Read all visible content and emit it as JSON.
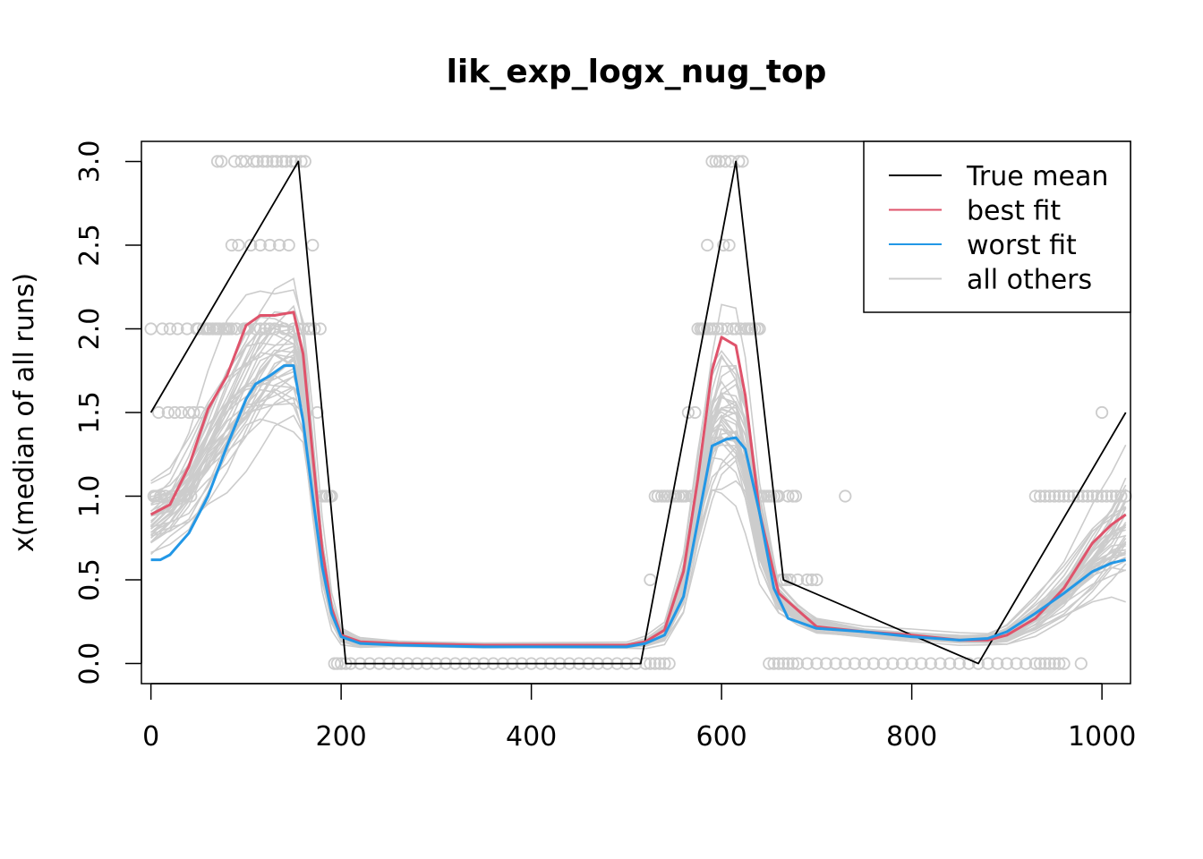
{
  "chart_data": {
    "type": "line",
    "title": "lik_exp_logx_nug_top",
    "xlabel": "",
    "ylabel": "x(median of all runs)",
    "xlim": [
      -10,
      1030
    ],
    "ylim": [
      -0.12,
      3.12
    ],
    "x_ticks": [
      0,
      200,
      400,
      600,
      800,
      1000
    ],
    "y_ticks": [
      0.0,
      0.5,
      1.0,
      1.5,
      2.0,
      2.5,
      3.0
    ],
    "x_tick_labels": [
      "0",
      "200",
      "400",
      "600",
      "800",
      "1000"
    ],
    "y_tick_labels": [
      "0.0",
      "0.5",
      "1.0",
      "1.5",
      "2.0",
      "2.5",
      "3.0"
    ],
    "legend": {
      "position": "top-right",
      "entries": [
        {
          "label": "True mean",
          "color": "#000000"
        },
        {
          "label": "best fit",
          "color": "#DF536B"
        },
        {
          "label": "worst fit",
          "color": "#2297E6"
        },
        {
          "label": "all others",
          "color": "#CCCCCC"
        }
      ]
    },
    "series": [
      {
        "name": "True mean",
        "color": "#000000",
        "x": [
          0,
          155,
          205,
          515,
          615,
          665,
          870,
          1025
        ],
        "y": [
          1.5,
          3.0,
          0.0,
          0.0,
          3.0,
          0.5,
          0.0,
          1.5
        ]
      },
      {
        "name": "best fit",
        "color": "#DF536B",
        "x": [
          0,
          20,
          40,
          60,
          80,
          100,
          115,
          130,
          150,
          160,
          170,
          180,
          190,
          200,
          220,
          260,
          350,
          450,
          500,
          520,
          540,
          560,
          575,
          590,
          600,
          615,
          625,
          640,
          660,
          680,
          700,
          750,
          800,
          850,
          880,
          900,
          930,
          960,
          990,
          1010,
          1025
        ],
        "y": [
          0.89,
          0.95,
          1.18,
          1.52,
          1.72,
          2.02,
          2.08,
          2.08,
          2.1,
          1.85,
          1.25,
          0.68,
          0.33,
          0.17,
          0.13,
          0.12,
          0.11,
          0.11,
          0.11,
          0.13,
          0.2,
          0.55,
          1.1,
          1.75,
          1.95,
          1.9,
          1.6,
          0.9,
          0.42,
          0.32,
          0.22,
          0.19,
          0.17,
          0.14,
          0.14,
          0.17,
          0.27,
          0.45,
          0.72,
          0.83,
          0.89
        ]
      },
      {
        "name": "worst fit",
        "color": "#2297E6",
        "x": [
          0,
          10,
          20,
          40,
          60,
          80,
          100,
          110,
          125,
          140,
          150,
          160,
          170,
          180,
          190,
          200,
          220,
          260,
          350,
          450,
          500,
          520,
          540,
          560,
          575,
          590,
          605,
          615,
          625,
          640,
          655,
          670,
          700,
          750,
          800,
          850,
          880,
          900,
          930,
          960,
          990,
          1010,
          1025
        ],
        "y": [
          0.62,
          0.62,
          0.65,
          0.78,
          1.0,
          1.3,
          1.58,
          1.67,
          1.72,
          1.78,
          1.78,
          1.45,
          1.0,
          0.58,
          0.3,
          0.16,
          0.12,
          0.11,
          0.1,
          0.1,
          0.1,
          0.12,
          0.17,
          0.4,
          0.85,
          1.3,
          1.34,
          1.35,
          1.28,
          0.9,
          0.45,
          0.27,
          0.21,
          0.19,
          0.16,
          0.14,
          0.15,
          0.19,
          0.3,
          0.42,
          0.55,
          0.6,
          0.62
        ]
      }
    ],
    "other_runs": {
      "color": "#CCCCCC",
      "count": 40,
      "x": [
        0,
        20,
        40,
        60,
        80,
        100,
        115,
        130,
        150,
        160,
        170,
        180,
        190,
        200,
        220,
        260,
        350,
        450,
        500,
        520,
        540,
        560,
        575,
        590,
        600,
        615,
        625,
        640,
        660,
        680,
        700,
        750,
        800,
        850,
        880,
        900,
        930,
        960,
        990,
        1010,
        1025
      ],
      "y_center": [
        0.9,
        0.97,
        1.12,
        1.35,
        1.55,
        1.72,
        1.82,
        1.88,
        1.9,
        1.72,
        1.2,
        0.66,
        0.32,
        0.17,
        0.13,
        0.12,
        0.11,
        0.11,
        0.11,
        0.13,
        0.19,
        0.5,
        1.0,
        1.45,
        1.58,
        1.55,
        1.35,
        0.82,
        0.4,
        0.3,
        0.23,
        0.19,
        0.17,
        0.15,
        0.15,
        0.18,
        0.3,
        0.45,
        0.66,
        0.78,
        0.88
      ],
      "spread": [
        0.15,
        0.15,
        0.2,
        0.25,
        0.28,
        0.28,
        0.28,
        0.28,
        0.3,
        0.25,
        0.2,
        0.12,
        0.06,
        0.03,
        0.02,
        0.01,
        0.01,
        0.01,
        0.01,
        0.02,
        0.04,
        0.12,
        0.2,
        0.3,
        0.35,
        0.32,
        0.28,
        0.18,
        0.06,
        0.04,
        0.03,
        0.02,
        0.02,
        0.02,
        0.02,
        0.04,
        0.08,
        0.12,
        0.18,
        0.2,
        0.25
      ]
    },
    "observations": {
      "color": "#CCCCCC",
      "note_values": [
        0,
        0.5,
        1,
        1.5,
        2,
        2.5,
        3
      ],
      "points": [
        [
          0,
          2
        ],
        [
          3,
          1
        ],
        [
          5,
          1
        ],
        [
          8,
          1.5
        ],
        [
          10,
          1
        ],
        [
          12,
          2
        ],
        [
          15,
          1
        ],
        [
          18,
          1.5
        ],
        [
          20,
          2
        ],
        [
          22,
          1
        ],
        [
          25,
          1.5
        ],
        [
          28,
          2
        ],
        [
          30,
          1
        ],
        [
          32,
          1.5
        ],
        [
          35,
          1
        ],
        [
          38,
          2
        ],
        [
          40,
          1.5
        ],
        [
          42,
          1
        ],
        [
          45,
          1.5
        ],
        [
          48,
          2
        ],
        [
          50,
          2
        ],
        [
          52,
          1.5
        ],
        [
          55,
          2
        ],
        [
          58,
          2
        ],
        [
          60,
          2
        ],
        [
          62,
          2
        ],
        [
          65,
          2
        ],
        [
          68,
          2
        ],
        [
          70,
          2
        ],
        [
          70,
          3
        ],
        [
          72,
          2
        ],
        [
          74,
          3
        ],
        [
          76,
          2
        ],
        [
          78,
          2
        ],
        [
          80,
          2
        ],
        [
          82,
          2
        ],
        [
          85,
          2
        ],
        [
          85,
          2.5
        ],
        [
          88,
          3
        ],
        [
          90,
          2
        ],
        [
          92,
          2.5
        ],
        [
          95,
          3
        ],
        [
          98,
          2
        ],
        [
          100,
          2
        ],
        [
          100,
          3
        ],
        [
          102,
          2
        ],
        [
          105,
          2.5
        ],
        [
          108,
          3
        ],
        [
          110,
          2
        ],
        [
          112,
          3
        ],
        [
          115,
          2
        ],
        [
          115,
          2.5
        ],
        [
          118,
          3
        ],
        [
          120,
          2
        ],
        [
          122,
          3
        ],
        [
          125,
          2
        ],
        [
          125,
          2.5
        ],
        [
          128,
          3
        ],
        [
          130,
          2
        ],
        [
          132,
          3
        ],
        [
          135,
          2.5
        ],
        [
          138,
          3
        ],
        [
          140,
          2
        ],
        [
          142,
          3
        ],
        [
          145,
          2.5
        ],
        [
          148,
          3
        ],
        [
          150,
          2
        ],
        [
          152,
          3
        ],
        [
          155,
          2
        ],
        [
          158,
          3
        ],
        [
          160,
          2
        ],
        [
          162,
          3
        ],
        [
          165,
          2
        ],
        [
          168,
          2
        ],
        [
          170,
          2.5
        ],
        [
          172,
          2
        ],
        [
          175,
          1.5
        ],
        [
          178,
          2
        ],
        [
          180,
          1
        ],
        [
          183,
          1
        ],
        [
          185,
          1
        ],
        [
          188,
          1
        ],
        [
          190,
          1
        ],
        [
          193,
          0
        ],
        [
          196,
          0
        ],
        [
          200,
          0
        ],
        [
          205,
          0
        ],
        [
          210,
          0
        ],
        [
          220,
          0
        ],
        [
          230,
          0
        ],
        [
          240,
          0
        ],
        [
          250,
          0
        ],
        [
          260,
          0
        ],
        [
          270,
          0
        ],
        [
          280,
          0
        ],
        [
          290,
          0
        ],
        [
          300,
          0
        ],
        [
          310,
          0
        ],
        [
          320,
          0
        ],
        [
          330,
          0
        ],
        [
          340,
          0
        ],
        [
          350,
          0
        ],
        [
          360,
          0
        ],
        [
          370,
          0
        ],
        [
          380,
          0
        ],
        [
          390,
          0
        ],
        [
          400,
          0
        ],
        [
          410,
          0
        ],
        [
          420,
          0
        ],
        [
          430,
          0
        ],
        [
          440,
          0
        ],
        [
          450,
          0
        ],
        [
          460,
          0
        ],
        [
          470,
          0
        ],
        [
          480,
          0
        ],
        [
          490,
          0
        ],
        [
          500,
          0
        ],
        [
          510,
          0
        ],
        [
          520,
          0
        ],
        [
          525,
          0
        ],
        [
          530,
          0
        ],
        [
          535,
          0
        ],
        [
          540,
          0
        ],
        [
          545,
          0
        ],
        [
          525,
          0.5
        ],
        [
          530,
          1
        ],
        [
          533,
          1
        ],
        [
          537,
          1
        ],
        [
          540,
          1
        ],
        [
          543,
          1
        ],
        [
          546,
          1
        ],
        [
          550,
          1
        ],
        [
          552,
          1
        ],
        [
          555,
          1
        ],
        [
          558,
          1
        ],
        [
          560,
          1
        ],
        [
          562,
          1
        ],
        [
          565,
          1.5
        ],
        [
          568,
          1
        ],
        [
          570,
          1
        ],
        [
          572,
          1.5
        ],
        [
          575,
          2
        ],
        [
          578,
          2
        ],
        [
          580,
          2
        ],
        [
          582,
          2
        ],
        [
          585,
          2
        ],
        [
          585,
          2.5
        ],
        [
          588,
          2
        ],
        [
          590,
          3
        ],
        [
          592,
          2
        ],
        [
          594,
          3
        ],
        [
          596,
          2
        ],
        [
          598,
          3
        ],
        [
          600,
          2
        ],
        [
          602,
          2.5
        ],
        [
          604,
          3
        ],
        [
          606,
          2
        ],
        [
          608,
          2.5
        ],
        [
          610,
          3
        ],
        [
          612,
          2
        ],
        [
          615,
          2
        ],
        [
          618,
          3
        ],
        [
          620,
          2
        ],
        [
          622,
          3
        ],
        [
          625,
          2
        ],
        [
          628,
          2
        ],
        [
          630,
          2
        ],
        [
          632,
          2
        ],
        [
          635,
          2
        ],
        [
          638,
          2
        ],
        [
          640,
          2
        ],
        [
          642,
          1
        ],
        [
          645,
          1
        ],
        [
          648,
          1
        ],
        [
          650,
          1
        ],
        [
          652,
          1
        ],
        [
          655,
          1
        ],
        [
          658,
          1
        ],
        [
          660,
          1
        ],
        [
          663,
          0.5
        ],
        [
          665,
          0.5
        ],
        [
          668,
          0.5
        ],
        [
          670,
          1
        ],
        [
          672,
          0.5
        ],
        [
          675,
          1
        ],
        [
          678,
          1
        ],
        [
          680,
          0.5
        ],
        [
          690,
          0.5
        ],
        [
          695,
          0.5
        ],
        [
          700,
          0.5
        ],
        [
          650,
          0
        ],
        [
          655,
          0
        ],
        [
          660,
          0
        ],
        [
          665,
          0
        ],
        [
          670,
          0
        ],
        [
          675,
          0
        ],
        [
          680,
          0
        ],
        [
          690,
          0
        ],
        [
          700,
          0
        ],
        [
          710,
          0
        ],
        [
          720,
          0
        ],
        [
          730,
          0
        ],
        [
          740,
          0
        ],
        [
          750,
          0
        ],
        [
          760,
          0
        ],
        [
          770,
          0
        ],
        [
          780,
          0
        ],
        [
          790,
          0
        ],
        [
          800,
          0
        ],
        [
          810,
          0
        ],
        [
          820,
          0
        ],
        [
          830,
          0
        ],
        [
          840,
          0
        ],
        [
          850,
          0
        ],
        [
          860,
          0
        ],
        [
          870,
          0
        ],
        [
          880,
          0
        ],
        [
          890,
          0
        ],
        [
          900,
          0
        ],
        [
          910,
          0
        ],
        [
          920,
          0
        ],
        [
          930,
          0
        ],
        [
          935,
          0
        ],
        [
          940,
          0
        ],
        [
          945,
          0
        ],
        [
          950,
          0
        ],
        [
          955,
          0
        ],
        [
          960,
          0
        ],
        [
          978,
          0
        ],
        [
          730,
          1
        ],
        [
          930,
          1
        ],
        [
          935,
          1
        ],
        [
          940,
          1
        ],
        [
          945,
          1
        ],
        [
          950,
          1
        ],
        [
          955,
          1
        ],
        [
          960,
          1
        ],
        [
          965,
          1
        ],
        [
          970,
          1
        ],
        [
          975,
          1
        ],
        [
          980,
          1
        ],
        [
          985,
          1
        ],
        [
          990,
          1
        ],
        [
          995,
          1
        ],
        [
          1000,
          1
        ],
        [
          1005,
          1
        ],
        [
          1010,
          1
        ],
        [
          1015,
          1
        ],
        [
          1020,
          1
        ],
        [
          1025,
          1
        ],
        [
          1000,
          1.5
        ]
      ]
    }
  }
}
